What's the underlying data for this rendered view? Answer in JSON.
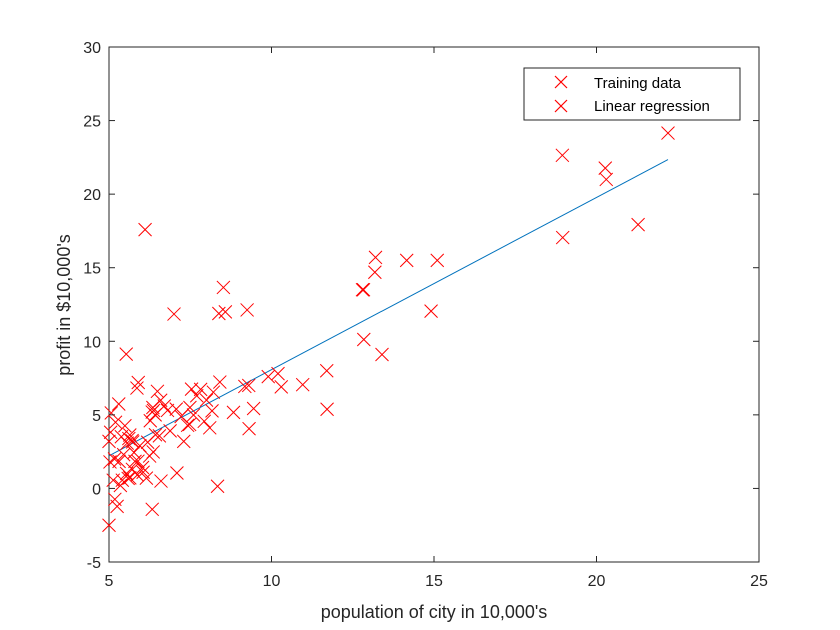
{
  "chart_data": {
    "type": "scatter",
    "title": "",
    "xlabel": "population of city in 10,000's",
    "ylabel": "profit in $10,000's",
    "xlim": [
      5,
      25
    ],
    "ylim": [
      -5,
      30
    ],
    "xticks": [
      5,
      10,
      15,
      20,
      25
    ],
    "yticks": [
      -5,
      0,
      5,
      10,
      15,
      20,
      25,
      30
    ],
    "grid": false,
    "legend_position": "top-right",
    "colors": {
      "scatter": "#ff0000",
      "line": "#0072bd",
      "axis": "#262626"
    },
    "series": [
      {
        "name": "Training data",
        "kind": "scatter",
        "marker": "x",
        "points": [
          [
            6.11,
            17.59
          ],
          [
            5.53,
            9.13
          ],
          [
            8.52,
            13.66
          ],
          [
            7.0,
            11.85
          ],
          [
            5.86,
            6.82
          ],
          [
            8.38,
            11.89
          ],
          [
            7.48,
            4.35
          ],
          [
            8.58,
            12.0
          ],
          [
            6.49,
            6.6
          ],
          [
            5.05,
            3.82
          ],
          [
            5.71,
            3.25
          ],
          [
            14.16,
            15.5
          ],
          [
            5.73,
            3.16
          ],
          [
            8.41,
            7.23
          ],
          [
            5.64,
            0.72
          ],
          [
            5.38,
            3.51
          ],
          [
            6.37,
            5.3
          ],
          [
            5.13,
            0.56
          ],
          [
            6.43,
            3.65
          ],
          [
            7.07,
            5.39
          ],
          [
            6.19,
            3.14
          ],
          [
            20.27,
            21.77
          ],
          [
            5.49,
            4.26
          ],
          [
            6.33,
            5.19
          ],
          [
            5.56,
            3.08
          ],
          [
            18.95,
            22.64
          ],
          [
            12.83,
            13.5
          ],
          [
            10.96,
            7.05
          ],
          [
            13.18,
            14.69
          ],
          [
            22.2,
            24.15
          ],
          [
            5.25,
            -1.22
          ],
          [
            6.59,
            5.99
          ],
          [
            9.25,
            12.13
          ],
          [
            5.89,
            1.85
          ],
          [
            8.21,
            6.54
          ],
          [
            7.93,
            4.56
          ],
          [
            8.1,
            4.12
          ],
          [
            5.61,
            3.39
          ],
          [
            12.84,
            10.12
          ],
          [
            6.35,
            5.5
          ],
          [
            5.41,
            0.56
          ],
          [
            6.88,
            3.91
          ],
          [
            11.71,
            5.38
          ],
          [
            5.77,
            2.44
          ],
          [
            7.82,
            6.73
          ],
          [
            7.09,
            1.05
          ],
          [
            5.07,
            5.13
          ],
          [
            5.8,
            1.84
          ],
          [
            11.7,
            8.0
          ],
          [
            5.54,
            1.02
          ],
          [
            7.54,
            6.75
          ],
          [
            5.31,
            1.84
          ],
          [
            7.42,
            4.29
          ],
          [
            7.6,
            4.99
          ],
          [
            6.03,
            1.42
          ],
          [
            6.33,
            -1.42
          ],
          [
            6.36,
            2.48
          ],
          [
            6.27,
            4.6
          ],
          [
            5.64,
            3.63
          ],
          [
            9.31,
            4.06
          ],
          [
            9.45,
            5.43
          ],
          [
            8.83,
            5.17
          ],
          [
            5.18,
            -0.74
          ],
          [
            21.28,
            17.93
          ],
          [
            14.91,
            12.05
          ],
          [
            18.96,
            17.05
          ],
          [
            7.22,
            4.89
          ],
          [
            5.3,
            5.74
          ],
          [
            6.55,
            3.57
          ],
          [
            5.17,
            2.0
          ],
          [
            5.03,
            1.8
          ],
          [
            8.17,
            5.27
          ],
          [
            9.3,
            7.0
          ],
          [
            5.59,
            0.68
          ],
          [
            9.18,
            6.93
          ],
          [
            8.34,
            0.15
          ],
          [
            7.49,
            5.5
          ],
          [
            5.0,
            -2.5
          ],
          [
            13.4,
            9.1
          ],
          [
            5.87,
            0.91
          ],
          [
            5.0,
            3.2
          ],
          [
            5.2,
            4.5
          ],
          [
            5.45,
            2.3
          ],
          [
            5.72,
            1.3
          ],
          [
            5.95,
            2.9
          ],
          [
            6.05,
            1.1
          ],
          [
            6.15,
            0.7
          ],
          [
            6.25,
            2.2
          ],
          [
            6.42,
            5.0
          ],
          [
            6.6,
            0.5
          ],
          [
            6.7,
            5.6
          ],
          [
            7.3,
            3.2
          ],
          [
            7.7,
            6.3
          ],
          [
            8.0,
            6.0
          ],
          [
            9.9,
            7.6
          ],
          [
            10.2,
            7.8
          ],
          [
            10.3,
            6.9
          ],
          [
            5.35,
            0.2
          ],
          [
            5.9,
            7.2
          ],
          [
            6.8,
            5.3
          ],
          [
            20.3,
            21.0
          ],
          [
            12.8,
            13.5
          ],
          [
            13.2,
            15.7
          ],
          [
            15.1,
            15.5
          ]
        ]
      },
      {
        "name": "Linear regression",
        "kind": "line",
        "points": [
          [
            5.0,
            2.22
          ],
          [
            22.2,
            22.35
          ]
        ]
      }
    ]
  }
}
